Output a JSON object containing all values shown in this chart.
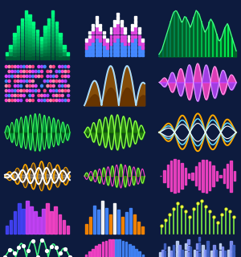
{
  "bg_color": "#0d1b3e",
  "bar_eq_bars": [
    2,
    4,
    7,
    9,
    11,
    13,
    12,
    10,
    8,
    6,
    9,
    11,
    13,
    10,
    7,
    4,
    2
  ],
  "dot_eq_bars": [
    5,
    7,
    9,
    11,
    9,
    7,
    5,
    8,
    10,
    12,
    10,
    8,
    6,
    9,
    11,
    8,
    5
  ],
  "gradient_bars_heights": [
    3,
    5,
    8,
    11,
    9,
    12,
    10,
    8,
    6,
    9,
    11,
    8,
    10,
    7,
    5,
    3
  ],
  "orange_bars_heights": [
    4,
    7,
    12,
    10,
    14,
    11,
    8,
    13,
    10,
    7,
    9,
    11,
    8,
    5,
    3
  ],
  "lollipop_heights": [
    3,
    5,
    7,
    9,
    11,
    10,
    8,
    6,
    9,
    11,
    12,
    10,
    8,
    6,
    4,
    7,
    9,
    8,
    6
  ]
}
